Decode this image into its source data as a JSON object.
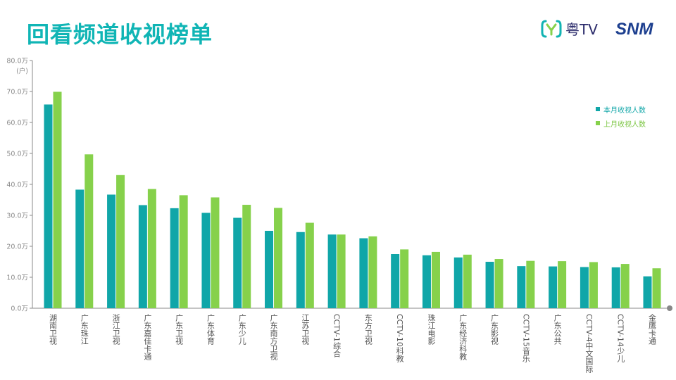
{
  "slide": {
    "title": "回看频道收视榜单"
  },
  "logos": {
    "yue_tv": "粤TV",
    "snm": "SNM"
  },
  "colors": {
    "title": "#10b5b5",
    "current": "#10a6a8",
    "previous": "#86d14b",
    "axis": "#8a8a8a"
  },
  "chart_data": {
    "type": "bar",
    "title": "",
    "xlabel": "",
    "ylabel": "(户)",
    "ylim": [
      0,
      80
    ],
    "y_ticks": [
      "0.0万",
      "10.0万",
      "20.0万",
      "30.0万",
      "40.0万",
      "50.0万",
      "60.0万",
      "70.0万",
      "80.0万"
    ],
    "categories": [
      "湖南卫视",
      "广东珠江",
      "浙江卫视",
      "广东嘉佳卡通",
      "广东卫视",
      "广东体育",
      "广东少儿",
      "广东南方卫视",
      "江苏卫视",
      "CCTV-1综合",
      "东方卫视",
      "CCTV-10科教",
      "珠江电影",
      "广东经济科教",
      "广东影视",
      "CCTV-15音乐",
      "广东公共",
      "CCTV-4中文国际",
      "CCTV-14少儿",
      "金鹰卡通"
    ],
    "series": [
      {
        "name": "本月收视人数",
        "values": [
          65.8,
          38.3,
          36.7,
          33.3,
          32.3,
          30.8,
          29.2,
          25.0,
          24.6,
          23.8,
          22.6,
          17.5,
          17.1,
          16.4,
          15.0,
          13.6,
          13.5,
          13.3,
          13.2,
          10.3
        ]
      },
      {
        "name": "上月收视人数",
        "values": [
          69.9,
          49.7,
          43.0,
          38.5,
          36.5,
          35.8,
          33.4,
          32.4,
          27.6,
          23.8,
          23.2,
          19.0,
          18.2,
          17.3,
          15.9,
          15.3,
          15.2,
          14.9,
          14.3,
          12.9
        ]
      }
    ],
    "legend_position": "right",
    "grid": false
  }
}
